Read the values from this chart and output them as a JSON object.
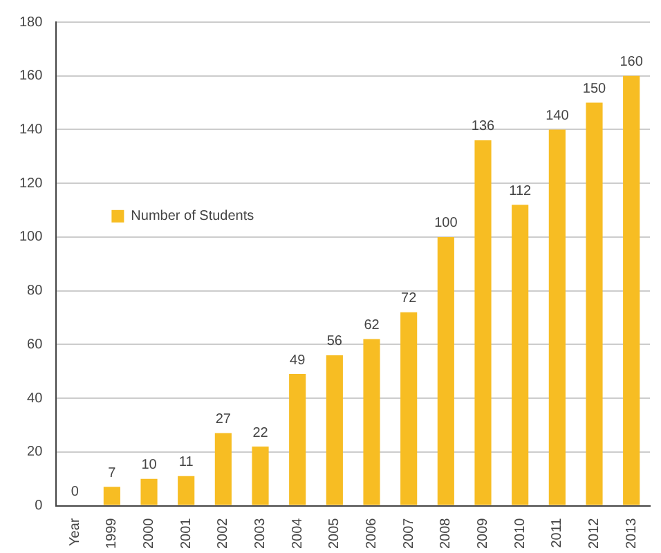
{
  "chart_data": {
    "type": "bar",
    "categories": [
      "Year",
      "1999",
      "2000",
      "2001",
      "2002",
      "2003",
      "2004",
      "2005",
      "2006",
      "2007",
      "2008",
      "2009",
      "2010",
      "2011",
      "2012",
      "2013"
    ],
    "series": [
      {
        "name": "Number of Students",
        "color": "#f7bd23",
        "values": [
          0,
          7,
          10,
          11,
          27,
          22,
          49,
          56,
          62,
          72,
          100,
          136,
          112,
          140,
          150,
          160
        ]
      }
    ],
    "ylim": [
      0,
      180
    ],
    "yticks": [
      0,
      20,
      40,
      60,
      80,
      100,
      120,
      140,
      160,
      180
    ],
    "grid": "y",
    "legend": "left",
    "data_labels": true
  }
}
